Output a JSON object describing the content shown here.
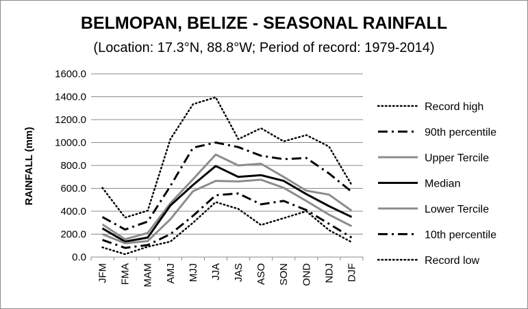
{
  "chart_data": {
    "type": "line",
    "title": "BELMOPAN, BELIZE - SEASONAL RAINFALL",
    "subtitle": "(Location: 17.3°N, 88.8°W; Period of record: 1979-2014)",
    "ylabel": "RAINFALL (mm)",
    "xlabel": "",
    "ylim": [
      0,
      1600
    ],
    "yticks": [
      "0.0",
      "200.0",
      "400.0",
      "600.0",
      "800.0",
      "1000.0",
      "1200.0",
      "1400.0",
      "1600.0"
    ],
    "grid": true,
    "legend_position": "right",
    "categories": [
      "JFM",
      "FMA",
      "MAM",
      "AMJ",
      "MJJ",
      "JJA",
      "JAS",
      "ASO",
      "SON",
      "OND",
      "NDJ",
      "DJF"
    ],
    "series": [
      {
        "name": "Record high",
        "style": "dotted",
        "color": "#000000",
        "values": [
          605,
          345,
          405,
          1030,
          1335,
          1395,
          1030,
          1125,
          1010,
          1065,
          965,
          630
        ]
      },
      {
        "name": "90th percentile",
        "style": "dashdot",
        "color": "#000000",
        "values": [
          350,
          240,
          310,
          620,
          955,
          1000,
          960,
          885,
          855,
          865,
          730,
          570
        ]
      },
      {
        "name": "Upper Tercile",
        "style": "solid",
        "color": "#8c8c8c",
        "values": [
          285,
          155,
          210,
          470,
          680,
          895,
          800,
          815,
          700,
          580,
          545,
          405
        ]
      },
      {
        "name": "Median",
        "style": "solid",
        "color": "#000000",
        "values": [
          250,
          135,
          170,
          450,
          630,
          795,
          700,
          715,
          665,
          550,
          445,
          350
        ]
      },
      {
        "name": "Lower Tercile",
        "style": "solid",
        "color": "#8c8c8c",
        "values": [
          200,
          120,
          140,
          330,
          575,
          665,
          660,
          675,
          605,
          490,
          370,
          270
        ]
      },
      {
        "name": "10th percentile",
        "style": "dashdot",
        "color": "#000000",
        "values": [
          150,
          80,
          105,
          200,
          360,
          540,
          555,
          460,
          490,
          410,
          290,
          170
        ]
      },
      {
        "name": "Record low",
        "style": "dotted",
        "color": "#000000",
        "values": [
          85,
          25,
          90,
          135,
          300,
          480,
          420,
          280,
          340,
          400,
          235,
          130
        ]
      }
    ]
  }
}
